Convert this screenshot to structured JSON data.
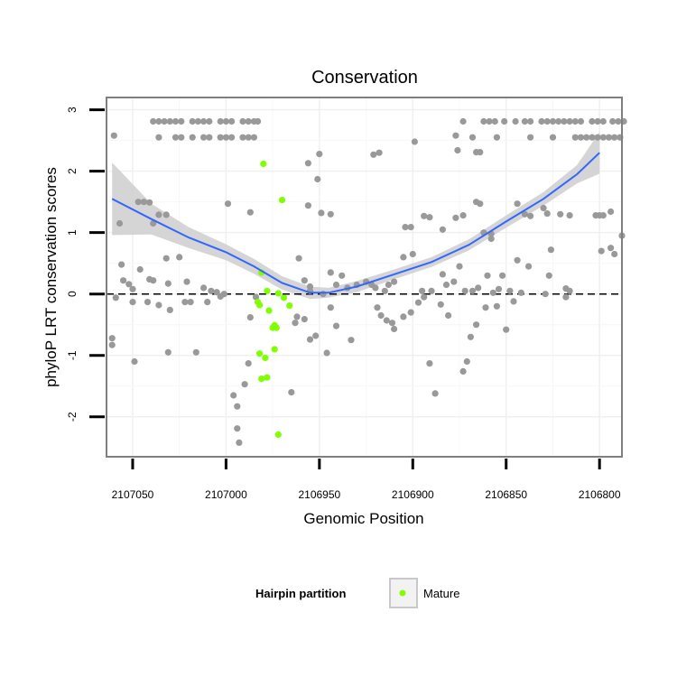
{
  "chart_data": {
    "type": "scatter",
    "title": "Conservation",
    "xlabel": "Genomic Position",
    "ylabel": "phyloP LRT conservation scores",
    "x_reversed": true,
    "xlim": [
      2107064,
      2106788
    ],
    "ylim": [
      -2.65,
      3.2
    ],
    "x_ticks": [
      2107050,
      2107000,
      2106950,
      2106900,
      2106850,
      2106800
    ],
    "y_ticks": [
      -2,
      -1,
      0,
      1,
      2,
      3
    ],
    "reference_line_y": 0,
    "grid": true,
    "legend": {
      "title": "Hairpin partition",
      "entries": [
        {
          "label": "Mature",
          "color": "#7fff00"
        }
      ],
      "placement": "bottom"
    },
    "colors": {
      "points": "#999999",
      "mature": "#7fff00",
      "smooth": "#3366ff",
      "band": "#d0d0d0",
      "panel_border": "#7f7f7f"
    },
    "series": [
      {
        "kind": "points",
        "group": "other",
        "points": [
          [
            2107039,
            2.81
          ],
          [
            2107036,
            2.81
          ],
          [
            2107033,
            2.81
          ],
          [
            2107030,
            2.81
          ],
          [
            2107027,
            2.81
          ],
          [
            2107024,
            2.81
          ],
          [
            2107018,
            2.81
          ],
          [
            2107015,
            2.81
          ],
          [
            2107012,
            2.81
          ],
          [
            2107009,
            2.81
          ],
          [
            2107003,
            2.81
          ],
          [
            2107000,
            2.81
          ],
          [
            2106997,
            2.81
          ],
          [
            2106991,
            2.81
          ],
          [
            2106988,
            2.81
          ],
          [
            2106985,
            2.81
          ],
          [
            2106983,
            2.81
          ],
          [
            2107060,
            2.58
          ],
          [
            2107036,
            2.55
          ],
          [
            2107027,
            2.55
          ],
          [
            2107024,
            2.55
          ],
          [
            2107018,
            2.55
          ],
          [
            2107012,
            2.55
          ],
          [
            2107009,
            2.55
          ],
          [
            2107003,
            2.55
          ],
          [
            2107000,
            2.55
          ],
          [
            2106997,
            2.55
          ],
          [
            2106991,
            2.55
          ],
          [
            2106988,
            2.55
          ],
          [
            2106985,
            2.55
          ],
          [
            2106840,
            2.81
          ],
          [
            2106837,
            2.81
          ],
          [
            2106831,
            2.81
          ],
          [
            2106828,
            2.81
          ],
          [
            2106825,
            2.81
          ],
          [
            2106822,
            2.81
          ],
          [
            2106819,
            2.81
          ],
          [
            2106816,
            2.81
          ],
          [
            2106813,
            2.81
          ],
          [
            2106810,
            2.81
          ],
          [
            2106804,
            2.81
          ],
          [
            2106801,
            2.81
          ],
          [
            2106798,
            2.81
          ],
          [
            2106793,
            2.81
          ],
          [
            2106790,
            2.81
          ],
          [
            2106787,
            2.81
          ],
          [
            2106873,
            2.81
          ],
          [
            2106862,
            2.81
          ],
          [
            2106859,
            2.81
          ],
          [
            2106856,
            2.81
          ],
          [
            2106851,
            2.81
          ],
          [
            2106845,
            2.81
          ],
          [
            2106855,
            2.55
          ],
          [
            2106837,
            2.55
          ],
          [
            2106825,
            2.55
          ],
          [
            2106813,
            2.55
          ],
          [
            2106810,
            2.55
          ],
          [
            2106807,
            2.55
          ],
          [
            2106804,
            2.55
          ],
          [
            2106801,
            2.55
          ],
          [
            2106798,
            2.55
          ],
          [
            2106795,
            2.55
          ],
          [
            2106792,
            2.55
          ],
          [
            2106789,
            2.55
          ],
          [
            2106877,
            2.58
          ],
          [
            2106868,
            2.55
          ],
          [
            2106866,
            2.31
          ],
          [
            2106864,
            2.31
          ],
          [
            2106876,
            2.34
          ],
          [
            2106899,
            2.48
          ],
          [
            2106921,
            2.27
          ],
          [
            2106918,
            2.3
          ],
          [
            2106950,
            2.28
          ],
          [
            2106956,
            2.13
          ],
          [
            2106951,
            1.87
          ],
          [
            2107047,
            1.5
          ],
          [
            2107044,
            1.5
          ],
          [
            2107041,
            1.49
          ],
          [
            2107039,
            1.15
          ],
          [
            2107036,
            1.29
          ],
          [
            2107032,
            1.29
          ],
          [
            2106999,
            1.47
          ],
          [
            2106987,
            1.33
          ],
          [
            2106944,
            1.3
          ],
          [
            2106956,
            1.44
          ],
          [
            2106949,
            1.32
          ],
          [
            2106904,
            1.09
          ],
          [
            2106901,
            1.09
          ],
          [
            2106894,
            1.27
          ],
          [
            2106891,
            1.25
          ],
          [
            2106884,
            1.05
          ],
          [
            2106877,
            1.24
          ],
          [
            2106873,
            1.28
          ],
          [
            2106862,
            1.0
          ],
          [
            2106858,
            0.9
          ],
          [
            2106858,
            0.98
          ],
          [
            2106866,
            1.5
          ],
          [
            2106864,
            1.47
          ],
          [
            2106844,
            1.47
          ],
          [
            2106840,
            1.3
          ],
          [
            2106837,
            1.27
          ],
          [
            2106830,
            1.4
          ],
          [
            2106828,
            1.31
          ],
          [
            2106821,
            1.3
          ],
          [
            2106816,
            1.28
          ],
          [
            2106802,
            1.28
          ],
          [
            2106798,
            1.28
          ],
          [
            2106794,
            1.34
          ],
          [
            2106800,
            1.28
          ],
          [
            2106788,
            0.95
          ],
          [
            2106792,
            0.65
          ],
          [
            2106794,
            0.75
          ],
          [
            2106799,
            0.7
          ],
          [
            2106826,
            0.72
          ],
          [
            2106838,
            0.45
          ],
          [
            2106827,
            0.3
          ],
          [
            2106818,
            0.09
          ],
          [
            2107057,
            1.15
          ],
          [
            2107056,
            0.48
          ],
          [
            2107055,
            0.22
          ],
          [
            2107052,
            0.16
          ],
          [
            2107050,
            0.08
          ],
          [
            2107046,
            0.4
          ],
          [
            2107041,
            0.24
          ],
          [
            2107039,
            0.22
          ],
          [
            2107032,
            0.58
          ],
          [
            2107031,
            0.17
          ],
          [
            2107025,
            0.6
          ],
          [
            2107021,
            0.2
          ],
          [
            2107012,
            0.1
          ],
          [
            2107008,
            0.05
          ],
          [
            2107005,
            0.03
          ],
          [
            2107001,
            0.0
          ],
          [
            2106961,
            0.58
          ],
          [
            2106958,
            0.22
          ],
          [
            2106955,
            0.12
          ],
          [
            2106955,
            0.05
          ],
          [
            2106948,
            0.0
          ],
          [
            2106944,
            0.35
          ],
          [
            2106941,
            0.15
          ],
          [
            2106938,
            0.3
          ],
          [
            2106935,
            0.1
          ],
          [
            2106930,
            0.15
          ],
          [
            2106925,
            0.2
          ],
          [
            2106922,
            0.15
          ],
          [
            2106920,
            0.1
          ],
          [
            2106915,
            0.05
          ],
          [
            2106913,
            0.15
          ],
          [
            2106910,
            0.2
          ],
          [
            2106905,
            0.6
          ],
          [
            2106900,
            0.65
          ],
          [
            2106895,
            0.05
          ],
          [
            2106890,
            0.05
          ],
          [
            2106884,
            0.32
          ],
          [
            2106882,
            0.15
          ],
          [
            2106878,
            0.2
          ],
          [
            2106875,
            0.45
          ],
          [
            2106872,
            0.05
          ],
          [
            2106868,
            0.05
          ],
          [
            2106865,
            0.1
          ],
          [
            2106860,
            0.3
          ],
          [
            2106857,
            0.02
          ],
          [
            2106854,
            0.08
          ],
          [
            2106852,
            0.3
          ],
          [
            2106848,
            0.05
          ],
          [
            2106844,
            0.55
          ],
          [
            2106842,
            0.02
          ],
          [
            2106829,
            0.0
          ],
          [
            2106818,
            -0.05
          ],
          [
            2106816,
            0.05
          ],
          [
            2107031,
            -0.95
          ],
          [
            2107016,
            -0.95
          ],
          [
            2107042,
            -0.13
          ],
          [
            2107036,
            -0.18
          ],
          [
            2107030,
            -0.26
          ],
          [
            2107022,
            -0.13
          ],
          [
            2107010,
            -0.13
          ],
          [
            2107003,
            -0.04
          ],
          [
            2107019,
            -0.13
          ],
          [
            2107050,
            -0.13
          ],
          [
            2107061,
            -0.72
          ],
          [
            2107061,
            -0.83
          ],
          [
            2107059,
            -0.06
          ],
          [
            2107049,
            -1.1
          ],
          [
            2106996,
            -1.65
          ],
          [
            2106994,
            -1.83
          ],
          [
            2106994,
            -2.19
          ],
          [
            2106993,
            -2.42
          ],
          [
            2106990,
            -1.47
          ],
          [
            2106988,
            -1.13
          ],
          [
            2106987,
            -0.38
          ],
          [
            2106984,
            -0.05
          ],
          [
            2106965,
            -1.6
          ],
          [
            2106963,
            -0.47
          ],
          [
            2106962,
            -0.37
          ],
          [
            2106958,
            -0.41
          ],
          [
            2106955,
            -0.74
          ],
          [
            2106952,
            -0.68
          ],
          [
            2106946,
            -0.96
          ],
          [
            2106944,
            -0.22
          ],
          [
            2106941,
            -0.52
          ],
          [
            2106933,
            -0.75
          ],
          [
            2106919,
            -0.22
          ],
          [
            2106917,
            -0.35
          ],
          [
            2106914,
            -0.43
          ],
          [
            2106911,
            -0.47
          ],
          [
            2106910,
            -0.57
          ],
          [
            2106905,
            -0.37
          ],
          [
            2106901,
            -0.3
          ],
          [
            2106897,
            -0.14
          ],
          [
            2106894,
            -0.05
          ],
          [
            2106891,
            -1.13
          ],
          [
            2106888,
            -1.62
          ],
          [
            2106885,
            -0.17
          ],
          [
            2106881,
            -0.35
          ],
          [
            2106873,
            -1.26
          ],
          [
            2106871,
            -1.1
          ],
          [
            2106869,
            -0.7
          ],
          [
            2106866,
            -0.5
          ],
          [
            2106861,
            -0.22
          ],
          [
            2106855,
            -0.2
          ],
          [
            2106850,
            -0.58
          ],
          [
            2106846,
            -0.12
          ]
        ]
      },
      {
        "kind": "points",
        "group": "Mature",
        "points": [
          [
            2106980,
            2.12
          ],
          [
            2106970,
            1.53
          ],
          [
            2106981,
            0.35
          ],
          [
            2106978,
            0.05
          ],
          [
            2106972,
            0.01
          ],
          [
            2106969,
            -0.06
          ],
          [
            2106966,
            -0.19
          ],
          [
            2106983,
            -0.13
          ],
          [
            2106982,
            -0.18
          ],
          [
            2106977,
            -0.27
          ],
          [
            2106975,
            -0.55
          ],
          [
            2106974,
            -0.51
          ],
          [
            2106973,
            -0.55
          ],
          [
            2106974,
            -0.9
          ],
          [
            2106982,
            -0.97
          ],
          [
            2106979,
            -1.04
          ],
          [
            2106981,
            -1.38
          ],
          [
            2106978,
            -1.36
          ],
          [
            2106972,
            -2.29
          ]
        ]
      },
      {
        "kind": "smooth",
        "x": [
          2107061,
          2107040,
          2107020,
          2107000,
          2106985,
          2106970,
          2106955,
          2106945,
          2106930,
          2106910,
          2106890,
          2106870,
          2106850,
          2106830,
          2106812,
          2106800
        ],
        "y": [
          1.55,
          1.22,
          0.92,
          0.68,
          0.45,
          0.18,
          0.02,
          0.02,
          0.12,
          0.32,
          0.52,
          0.8,
          1.18,
          1.55,
          1.95,
          2.3
        ],
        "band_upper": [
          2.14,
          1.47,
          1.09,
          0.81,
          0.57,
          0.29,
          0.12,
          0.1,
          0.21,
          0.4,
          0.6,
          0.89,
          1.28,
          1.66,
          2.1,
          2.64
        ],
        "band_lower": [
          0.96,
          0.97,
          0.75,
          0.55,
          0.33,
          0.07,
          -0.08,
          -0.06,
          0.03,
          0.24,
          0.44,
          0.71,
          1.08,
          1.44,
          1.8,
          1.96
        ]
      }
    ]
  }
}
